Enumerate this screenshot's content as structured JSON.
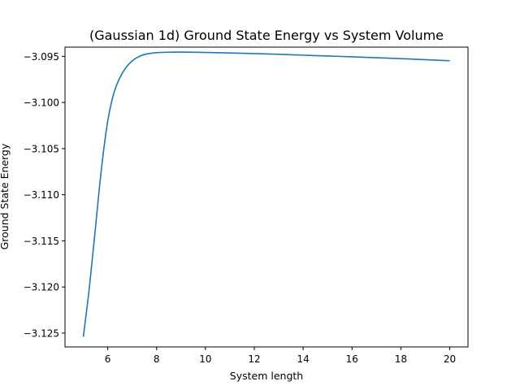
{
  "chart_data": {
    "type": "line",
    "title": "(Gaussian 1d) Ground State Energy vs System Volume",
    "xlabel": "System length",
    "ylabel": "Ground State Energy",
    "xlim": [
      4.25,
      20.75
    ],
    "ylim": [
      -3.1265,
      -3.094
    ],
    "x_ticks": [
      6,
      8,
      10,
      12,
      14,
      16,
      18,
      20
    ],
    "x_tick_labels": [
      "6",
      "8",
      "10",
      "12",
      "14",
      "16",
      "18",
      "20"
    ],
    "y_ticks": [
      -3.095,
      -3.1,
      -3.105,
      -3.11,
      -3.115,
      -3.12,
      -3.125
    ],
    "y_tick_labels": [
      "−3.095",
      "−3.100",
      "−3.105",
      "−3.110",
      "−3.115",
      "−3.120",
      "−3.125"
    ],
    "grid": false,
    "series": [
      {
        "color": "#1f77b4",
        "x": [
          5.0,
          5.25,
          5.5,
          5.75,
          6.0,
          6.25,
          6.5,
          6.75,
          7.0,
          7.25,
          7.5,
          7.75,
          8.0,
          8.5,
          9.0,
          9.5,
          10.0,
          11.0,
          12.0,
          13.0,
          14.0,
          15.0,
          16.0,
          17.0,
          18.0,
          19.0,
          20.0
        ],
        "y": [
          -3.1254,
          -3.12,
          -3.1135,
          -3.107,
          -3.102,
          -3.099,
          -3.0973,
          -3.0962,
          -3.0955,
          -3.09505,
          -3.0948,
          -3.09468,
          -3.0946,
          -3.09455,
          -3.09453,
          -3.09455,
          -3.09458,
          -3.09463,
          -3.0947,
          -3.09478,
          -3.09487,
          -3.09496,
          -3.09505,
          -3.09515,
          -3.09525,
          -3.09536,
          -3.09548
        ]
      }
    ]
  }
}
